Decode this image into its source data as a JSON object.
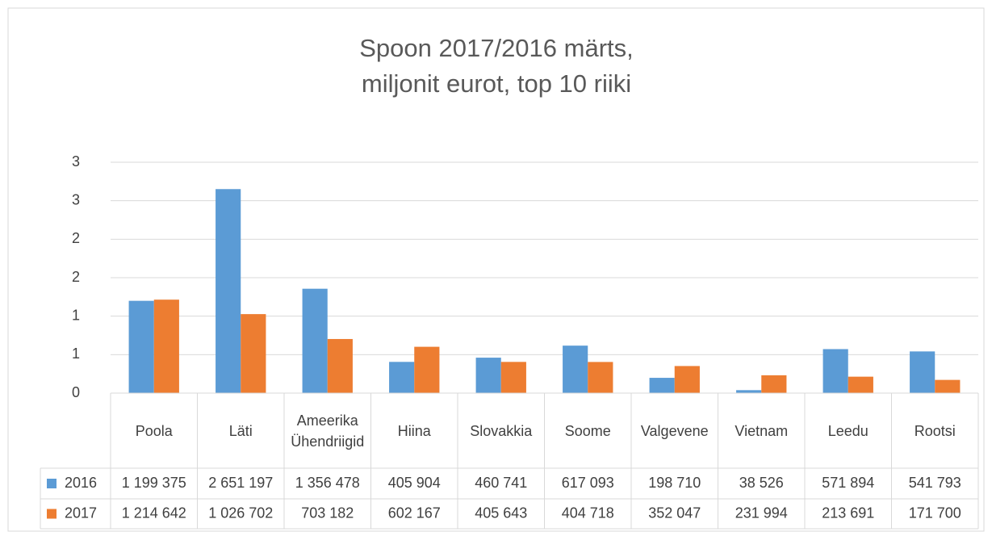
{
  "chart_data": {
    "type": "bar",
    "title": [
      "Spoon 2017/2016 märts,",
      "miljonit eurot, top 10 riiki"
    ],
    "categories": [
      "Poola",
      "Läti",
      "Ameerika Ühendriigid",
      "Hiina",
      "Slovakkia",
      "Soome",
      "Valgevene",
      "Vietnam",
      "Leedu",
      "Rootsi"
    ],
    "series": [
      {
        "name": "2016",
        "color": "#5b9bd5",
        "values": [
          1.199375,
          2.651197,
          1.356478,
          0.405904,
          0.460741,
          0.617093,
          0.19871,
          0.038526,
          0.571894,
          0.541793
        ],
        "value_labels": [
          "1 199 375",
          "2 651 197",
          "1 356 478",
          "405 904",
          "460 741",
          "617 093",
          "198 710",
          "38 526",
          "571 894",
          "541 793"
        ]
      },
      {
        "name": "2017",
        "color": "#ed7d31",
        "values": [
          1.214642,
          1.026702,
          0.703182,
          0.602167,
          0.405643,
          0.404718,
          0.352047,
          0.231994,
          0.213691,
          0.1717
        ],
        "value_labels": [
          "1 214 642",
          "1 026 702",
          "703 182",
          "602 167",
          "405 643",
          "404 718",
          "352 047",
          "231 994",
          "213 691",
          "171 700"
        ]
      }
    ],
    "ylim": [
      0,
      3
    ],
    "yticks": [
      0,
      {
        "value": 0.5,
        "label": "1"
      },
      1,
      {
        "value": 1.5,
        "label": "2"
      },
      2,
      {
        "value": 2.5,
        "label": "3"
      },
      3
    ],
    "grid": true,
    "data_table": true
  }
}
